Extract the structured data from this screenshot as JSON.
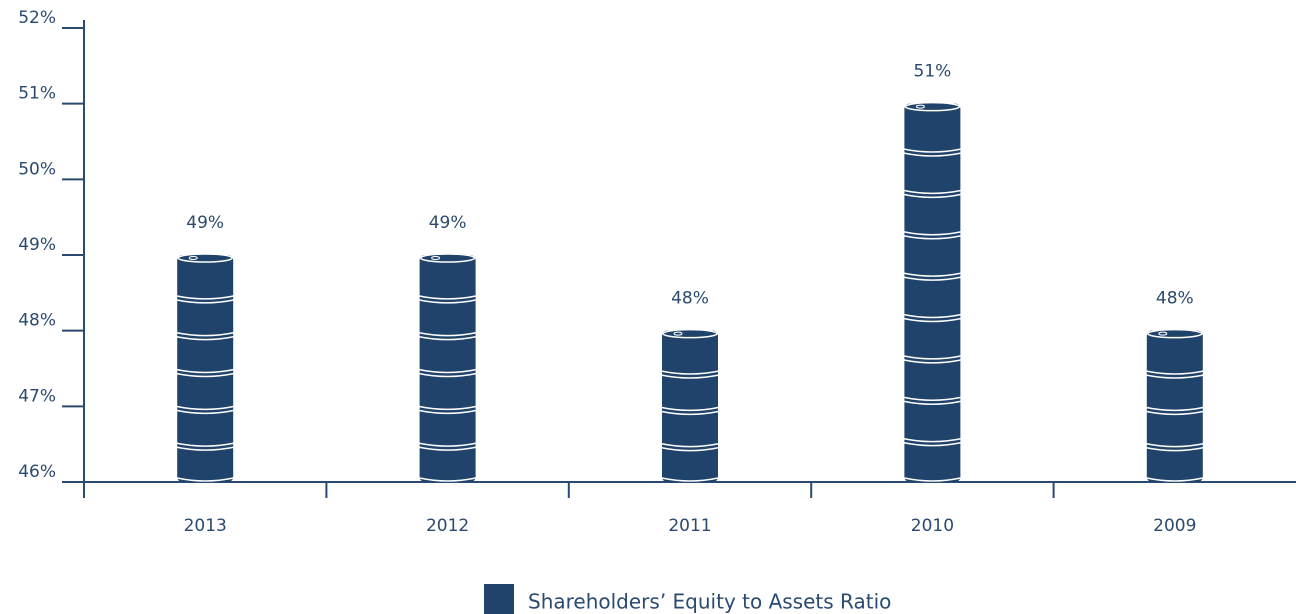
{
  "chart_data": {
    "type": "bar",
    "categories": [
      "2013",
      "2012",
      "2011",
      "2010",
      "2009"
    ],
    "series": [
      {
        "name": "Shareholders’ Equity to Assets Ratio",
        "color": "#20436b",
        "values": [
          49,
          49,
          48,
          51,
          48
        ],
        "value_labels": [
          "49%",
          "49%",
          "48%",
          "51%",
          "48%"
        ]
      }
    ],
    "ylim": [
      46,
      52
    ],
    "yticks": [
      {
        "value": 46,
        "label": "46%"
      },
      {
        "value": 47,
        "label": "47%"
      },
      {
        "value": 48,
        "label": "48%"
      },
      {
        "value": 49,
        "label": "49%"
      },
      {
        "value": 50,
        "label": "50%"
      },
      {
        "value": 51,
        "label": "51%"
      },
      {
        "value": 52,
        "label": "52%"
      }
    ]
  }
}
